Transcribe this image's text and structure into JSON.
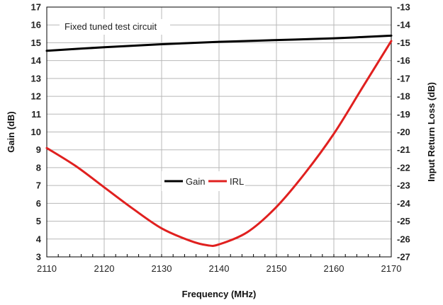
{
  "chart_data": {
    "type": "line",
    "xlabel": "Frequency (MHz)",
    "ylabel": "Gain (dB)",
    "y2label": "Input Return Loss (dB)",
    "xlim": [
      2110,
      2170
    ],
    "ylim": [
      3,
      17
    ],
    "y2lim": [
      -27,
      -13
    ],
    "xticks": [
      2110,
      2120,
      2130,
      2140,
      2150,
      2160,
      2170
    ],
    "yticks": [
      3,
      4,
      5,
      6,
      7,
      8,
      9,
      10,
      11,
      12,
      13,
      14,
      15,
      16,
      17
    ],
    "y2ticks": [
      -13,
      -14,
      -15,
      -16,
      -17,
      -18,
      -19,
      -20,
      -21,
      -22,
      -23,
      -24,
      -25,
      -26,
      -27
    ],
    "grid": true,
    "legend_position": "center",
    "annotation": "Fixed tuned test circuit",
    "series": [
      {
        "name": "Gain",
        "axis": "left",
        "color": "#000000",
        "x": [
          2110,
          2120,
          2130,
          2140,
          2150,
          2160,
          2170
        ],
        "values": [
          14.55,
          14.75,
          14.92,
          15.05,
          15.15,
          15.25,
          15.4
        ]
      },
      {
        "name": "IRL",
        "axis": "right",
        "color": "#e0201f",
        "x": [
          2110,
          2115,
          2120,
          2125,
          2130,
          2135,
          2138,
          2140,
          2145,
          2150,
          2155,
          2160,
          2165,
          2170
        ],
        "values": [
          -20.9,
          -21.9,
          -23.1,
          -24.3,
          -25.4,
          -26.1,
          -26.35,
          -26.3,
          -25.6,
          -24.2,
          -22.3,
          -20.1,
          -17.5,
          -14.9
        ]
      }
    ]
  }
}
